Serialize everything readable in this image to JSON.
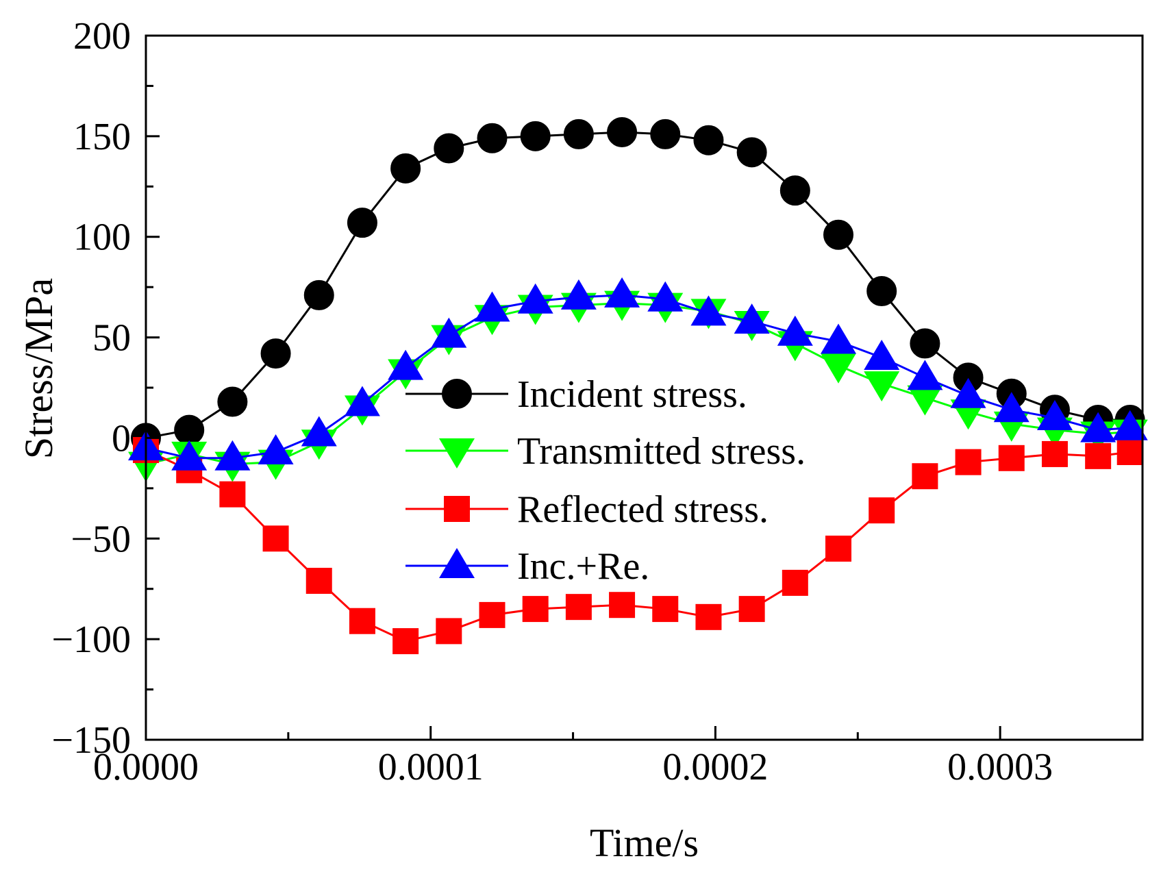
{
  "chart_data": {
    "type": "line",
    "title": "",
    "xlabel": "Time/s",
    "ylabel": "Stress/MPa",
    "xlim": [
      0,
      0.00035
    ],
    "ylim": [
      -150,
      200
    ],
    "x_major_ticks": [
      0,
      0.0001,
      0.0002,
      0.0003
    ],
    "x_tick_labels": [
      "0.0000",
      "0.0001",
      "0.0002",
      "0.0003"
    ],
    "x_minor_ticks": [
      5e-05,
      0.00015,
      0.00025
    ],
    "y_major_ticks": [
      -150,
      -100,
      -50,
      0,
      50,
      100,
      150,
      200
    ],
    "y_tick_labels": [
      "−150",
      "−100",
      "−50",
      "0",
      "50",
      "100",
      "150",
      "200"
    ],
    "y_minor_ticks": [
      -125,
      -75,
      -25,
      25,
      75,
      125,
      175
    ],
    "grid": false,
    "legend_position": "center",
    "x": [
      0,
      1.52e-05,
      3.04e-05,
      4.56e-05,
      6.08e-05,
      7.6e-05,
      9.12e-05,
      0.0001064,
      0.0001216,
      0.0001368,
      0.000152,
      0.0001672,
      0.0001824,
      0.0001976,
      0.0002128,
      0.000228,
      0.0002432,
      0.0002584,
      0.0002736,
      0.0002888,
      0.000304,
      0.0003192,
      0.0003344,
      0.0003456
    ],
    "series": [
      {
        "name": "Incident stress.",
        "color": "#000000",
        "marker": "circle",
        "values": [
          0,
          4,
          18,
          42,
          71,
          107,
          134,
          144,
          149,
          150,
          151,
          152,
          151,
          148,
          142,
          123,
          101,
          73,
          47,
          30,
          22,
          14,
          9,
          9
        ]
      },
      {
        "name": "Transmitted stress.",
        "color": "#00ff00",
        "marker": "triangle-down",
        "values": [
          -13,
          -8,
          -13,
          -12,
          -2,
          15,
          33,
          50,
          60,
          65,
          66,
          67,
          66,
          63,
          57,
          47,
          36,
          27,
          20,
          13,
          7,
          4,
          2,
          3
        ]
      },
      {
        "name": "Reflected stress.",
        "color": "#ff0000",
        "marker": "square",
        "values": [
          -6,
          -16,
          -28,
          -50,
          -71,
          -91,
          -101,
          -96,
          -88,
          -85,
          -84,
          -83,
          -85,
          -89,
          -85,
          -72,
          -55,
          -36,
          -19,
          -12,
          -10,
          -8,
          -9,
          -7
        ]
      },
      {
        "name": "Inc.+Re.",
        "color": "#0000ff",
        "marker": "triangle-up",
        "values": [
          -5,
          -10,
          -10,
          -7,
          2,
          17,
          35,
          51,
          64,
          68,
          70,
          71,
          69,
          62,
          58,
          52,
          48,
          40,
          30,
          21,
          14,
          10,
          4,
          5
        ]
      }
    ]
  }
}
